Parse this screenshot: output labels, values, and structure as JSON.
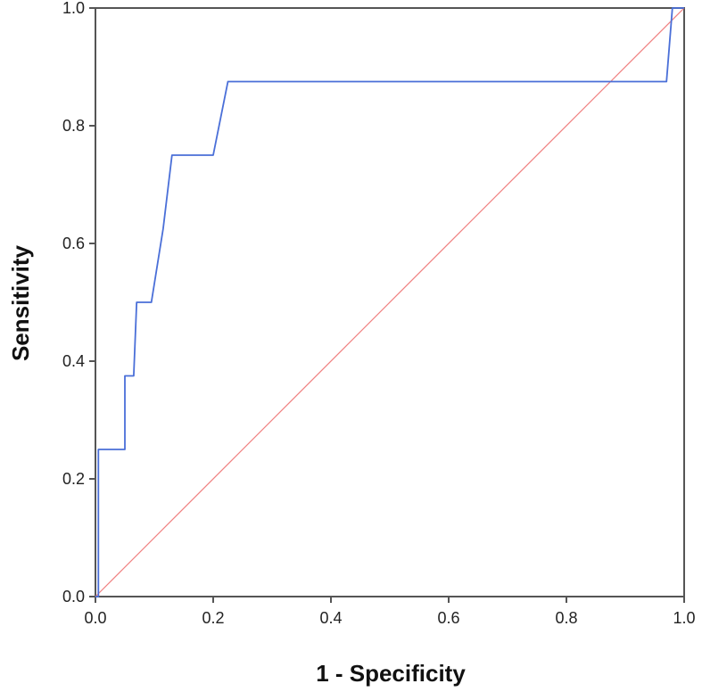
{
  "chart_data": {
    "type": "line",
    "title": "",
    "xlabel": "1 - Specificity",
    "ylabel": "Sensitivity",
    "xlim": [
      0,
      1
    ],
    "ylim": [
      0,
      1
    ],
    "x_ticks": [
      "0.0",
      "0.2",
      "0.4",
      "0.6",
      "0.8",
      "1.0"
    ],
    "y_ticks": [
      "0.0",
      "0.2",
      "0.4",
      "0.6",
      "0.8",
      "1.0"
    ],
    "grid": false,
    "legend": "none",
    "series": [
      {
        "color": "#4a6fd8",
        "points": [
          [
            0.0,
            0.0
          ],
          [
            0.005,
            0.0
          ],
          [
            0.005,
            0.25
          ],
          [
            0.05,
            0.25
          ],
          [
            0.05,
            0.375
          ],
          [
            0.065,
            0.375
          ],
          [
            0.07,
            0.5
          ],
          [
            0.095,
            0.5
          ],
          [
            0.115,
            0.625
          ],
          [
            0.13,
            0.75
          ],
          [
            0.2,
            0.75
          ],
          [
            0.225,
            0.875
          ],
          [
            0.97,
            0.875
          ],
          [
            0.98,
            1.0
          ],
          [
            1.0,
            1.0
          ]
        ]
      },
      {
        "color": "#f08080",
        "points": [
          [
            0,
            0
          ],
          [
            1,
            1
          ]
        ]
      }
    ]
  }
}
